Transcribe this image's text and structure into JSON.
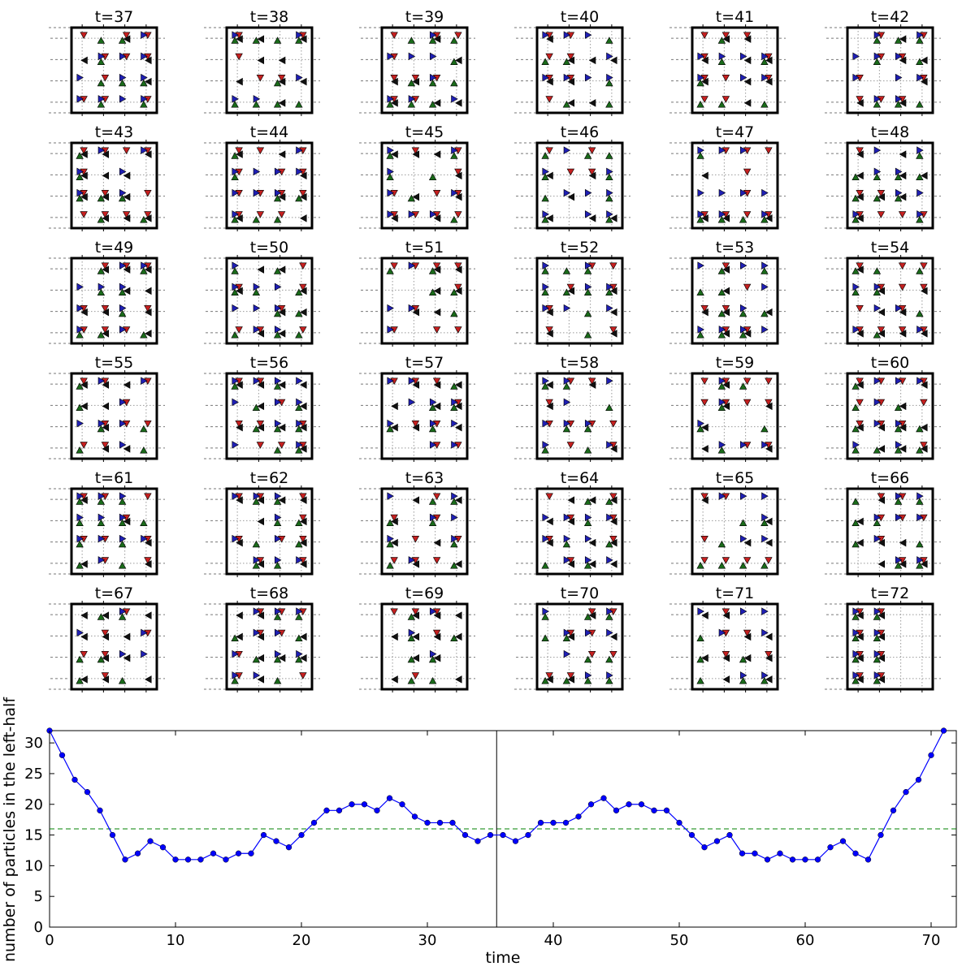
{
  "chart_data": [
    {
      "type": "scatter",
      "description_kind": "grid of lattice snapshots",
      "panel_titles": [
        "t=37",
        "t=38",
        "t=39",
        "t=40",
        "t=41",
        "t=42",
        "t=43",
        "t=44",
        "t=45",
        "t=46",
        "t=47",
        "t=48",
        "t=49",
        "t=50",
        "t=51",
        "t=52",
        "t=53",
        "t=54",
        "t=55",
        "t=56",
        "t=57",
        "t=58",
        "t=59",
        "t=60",
        "t=61",
        "t=62",
        "t=63",
        "t=64",
        "t=65",
        "t=66",
        "t=67",
        "t=68",
        "t=69",
        "t=70",
        "t=71",
        "t=72"
      ],
      "lattice_size": 4,
      "markers": {
        "right": {
          "symbol": "triangle-right",
          "color": "#1f1fb4"
        },
        "down": {
          "symbol": "triangle-down",
          "color": "#c62020"
        },
        "up": {
          "symbol": "triangle-up",
          "color": "#1a6b1a"
        },
        "left": {
          "symbol": "triangle-left",
          "color": "#111111"
        }
      },
      "final_state_left_half_full": true
    },
    {
      "type": "line",
      "title": "",
      "xlabel": "time",
      "ylabel": "number of particles in the left-half",
      "xlim": [
        0,
        72
      ],
      "ylim": [
        0,
        32
      ],
      "xticks": [
        0,
        10,
        20,
        30,
        40,
        50,
        60,
        70
      ],
      "yticks": [
        0,
        5,
        10,
        15,
        20,
        25,
        30
      ],
      "grid": false,
      "legend": "none",
      "series": [
        {
          "color": "#0000ff",
          "marker": "circle",
          "x": [
            0,
            1,
            2,
            3,
            4,
            5,
            6,
            7,
            8,
            9,
            10,
            11,
            12,
            13,
            14,
            15,
            16,
            17,
            18,
            19,
            20,
            21,
            22,
            23,
            24,
            25,
            26,
            27,
            28,
            29,
            30,
            31,
            32,
            33,
            34,
            35,
            36,
            37,
            38,
            39,
            40,
            41,
            42,
            43,
            44,
            45,
            46,
            47,
            48,
            49,
            50,
            51,
            52,
            53,
            54,
            55,
            56,
            57,
            58,
            59,
            60,
            61,
            62,
            63,
            64,
            65,
            66,
            67,
            68,
            69,
            70,
            71
          ],
          "values": [
            32,
            28,
            24,
            22,
            19,
            15,
            11,
            12,
            14,
            13,
            11,
            11,
            11,
            12,
            11,
            12,
            12,
            15,
            14,
            13,
            15,
            17,
            19,
            19,
            20,
            20,
            19,
            21,
            20,
            18,
            17,
            17,
            17,
            15,
            14,
            15,
            15,
            14,
            15,
            17,
            17,
            17,
            18,
            20,
            21,
            19,
            20,
            20,
            19,
            19,
            17,
            15,
            13,
            14,
            15,
            12,
            12,
            11,
            12,
            11,
            11,
            11,
            13,
            14,
            12,
            11,
            15,
            19,
            22,
            24,
            28,
            32
          ]
        }
      ],
      "reference_lines": [
        {
          "orientation": "horizontal",
          "value": 16,
          "style": "dashed",
          "color": "#008000"
        },
        {
          "orientation": "vertical",
          "value": 35.5,
          "style": "solid",
          "color": "#000000"
        }
      ]
    }
  ]
}
